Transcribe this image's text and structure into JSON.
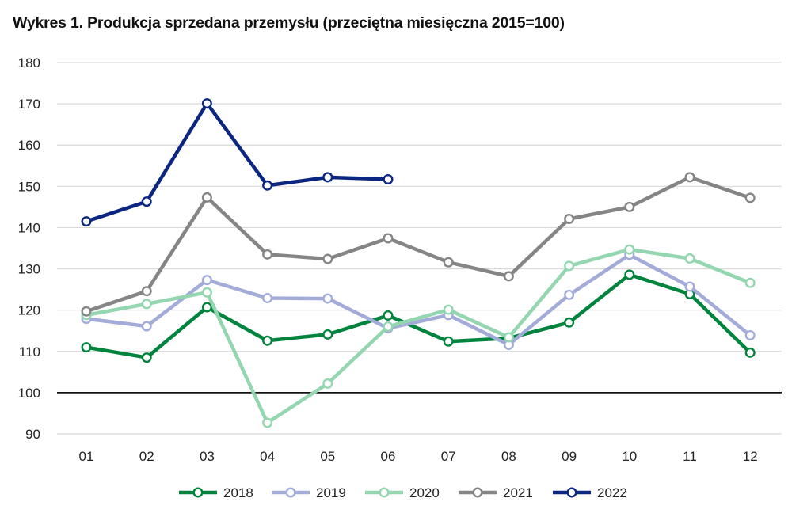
{
  "chart_data": {
    "type": "line",
    "title": "Wykres 1. Produkcja sprzedana przemysłu (przeciętna miesięczna 2015=100)",
    "xlabel": "",
    "ylabel": "",
    "categories": [
      "01",
      "02",
      "03",
      "04",
      "05",
      "06",
      "07",
      "08",
      "09",
      "10",
      "11",
      "12"
    ],
    "ylim": [
      90,
      180
    ],
    "yticks": [
      "90",
      "100",
      "110",
      "120",
      "130",
      "140",
      "150",
      "160",
      "170",
      "180"
    ],
    "reference_line": 100,
    "grid": true,
    "legend_position": "bottom",
    "series": [
      {
        "name": "2018",
        "color": "#00843d",
        "values": [
          111.0,
          108.5,
          120.7,
          112.6,
          114.1,
          118.7,
          112.4,
          113.2,
          117.0,
          128.6,
          123.9,
          109.7
        ]
      },
      {
        "name": "2019",
        "color": "#a3acd9",
        "values": [
          117.9,
          116.1,
          127.3,
          122.9,
          122.8,
          115.6,
          118.8,
          111.6,
          123.7,
          133.4,
          125.7,
          113.9
        ]
      },
      {
        "name": "2020",
        "color": "#93d6b0",
        "values": [
          118.8,
          121.5,
          124.3,
          92.7,
          102.2,
          116.0,
          120.1,
          113.4,
          130.7,
          134.7,
          132.5,
          126.6
        ]
      },
      {
        "name": "2021",
        "color": "#858585",
        "values": [
          119.7,
          124.6,
          147.3,
          133.5,
          132.4,
          137.4,
          131.6,
          128.2,
          142.1,
          145.0,
          152.2,
          147.2
        ]
      },
      {
        "name": "2022",
        "color": "#0b2680",
        "values": [
          141.5,
          146.3,
          170.1,
          150.2,
          152.2,
          151.7,
          null,
          null,
          null,
          null,
          null,
          null
        ]
      }
    ]
  }
}
